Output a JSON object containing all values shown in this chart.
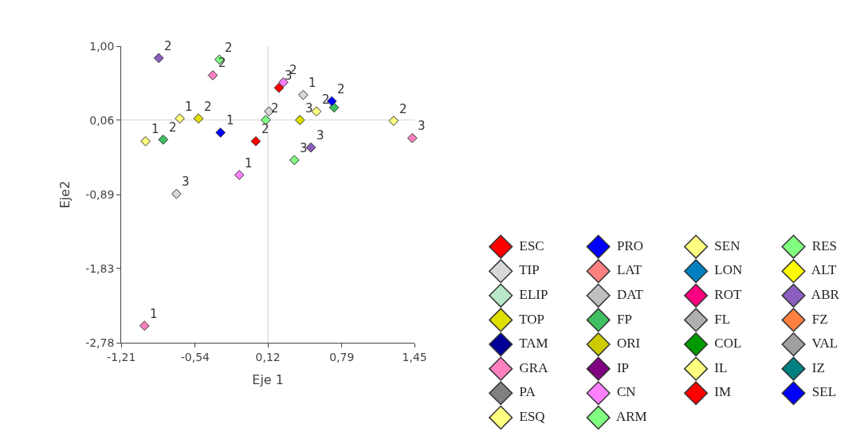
{
  "chart_data": {
    "type": "scatter",
    "xlabel": "Eje 1",
    "ylabel": "Eje2",
    "marker": "diamond",
    "grid": false,
    "legend": "bottom right",
    "xlim": [
      -1.21,
      1.45
    ],
    "ylim": [
      -2.78,
      1.0
    ],
    "xticks": [
      {
        "value": -1.21,
        "label": "-1,21"
      },
      {
        "value": -0.54,
        "label": "-0,54"
      },
      {
        "value": 0.12,
        "label": "0,12"
      },
      {
        "value": 0.79,
        "label": "0,79"
      },
      {
        "value": 1.45,
        "label": "1,45"
      }
    ],
    "yticks": [
      {
        "value": -2.78,
        "label": "-2,78"
      },
      {
        "value": -1.83,
        "label": "-1,83"
      },
      {
        "value": -0.89,
        "label": "-0,89"
      },
      {
        "value": 0.06,
        "label": "0,06"
      },
      {
        "value": 1.0,
        "label": "1,00"
      }
    ],
    "ref_lines": [
      {
        "axis": "x",
        "value": 0.12,
        "color": "#e0e0e0"
      },
      {
        "axis": "y",
        "value": 0.06,
        "color": "#e0e0e0"
      }
    ],
    "series": [
      {
        "name": "ESC",
        "color": "#ff0000",
        "x": [
          0.01,
          0.22
        ],
        "values": [
          -0.21,
          0.47
        ]
      },
      {
        "name": "PRO",
        "color": "#0000ff",
        "x": [
          -0.31
        ],
        "values": [
          -0.1
        ]
      },
      {
        "name": "SEN",
        "color": "#ffff80",
        "x": [
          -0.68,
          -0.99,
          0.56,
          1.26
        ],
        "values": [
          0.08,
          -0.21,
          0.17,
          0.05
        ]
      },
      {
        "name": "RES",
        "color": "#80ff80",
        "x": [
          -0.32,
          0.1,
          0.36
        ],
        "values": [
          0.83,
          0.06,
          -0.45
        ]
      },
      {
        "name": "TIP",
        "color": "#d8d8d8",
        "x": [
          -0.71,
          0.44,
          0.13
        ],
        "values": [
          -0.88,
          0.38,
          0.17
        ]
      },
      {
        "name": "LAT",
        "color": "#ff8080"
      },
      {
        "name": "LON",
        "color": "#0080c0"
      },
      {
        "name": "ALT",
        "color": "#ffff00"
      },
      {
        "name": "ELIP",
        "color": "#b8e8c8"
      },
      {
        "name": "DAT",
        "color": "#c0c0c0"
      },
      {
        "name": "ROT",
        "color": "#ff0080"
      },
      {
        "name": "ABR",
        "color": "#8b5fbf",
        "x": [
          -0.87,
          0.51
        ],
        "values": [
          0.85,
          -0.29
        ]
      },
      {
        "name": "TOP",
        "color": "#e0e000",
        "x": [
          -0.51,
          0.41
        ],
        "values": [
          0.08,
          0.06
        ]
      },
      {
        "name": "FP",
        "color": "#40c060",
        "x": [
          -0.83,
          0.72
        ],
        "values": [
          -0.19,
          0.22
        ]
      },
      {
        "name": "FL",
        "color": "#b0b0b0"
      },
      {
        "name": "FZ",
        "color": "#ff8040"
      },
      {
        "name": "TAM",
        "color": "#000099"
      },
      {
        "name": "ORI",
        "color": "#cccc00"
      },
      {
        "name": "COL",
        "color": "#009900"
      },
      {
        "name": "VAL",
        "color": "#a0a0a0"
      },
      {
        "name": "GRA",
        "color": "#ff80c0",
        "x": [
          -0.38,
          1.43,
          -1.0
        ],
        "values": [
          0.63,
          -0.17,
          -2.56
        ]
      },
      {
        "name": "IP",
        "color": "#800080"
      },
      {
        "name": "IL",
        "color": "#ffff80"
      },
      {
        "name": "IZ",
        "color": "#008080"
      },
      {
        "name": "PA",
        "color": "#808080"
      },
      {
        "name": "CN",
        "color": "#ff80ff",
        "x": [
          -0.14,
          0.26
        ],
        "values": [
          -0.64,
          0.54
        ]
      },
      {
        "name": "IM",
        "color": "#ff0000"
      },
      {
        "name": "SEL",
        "color": "#0000ff",
        "x": [
          0.7
        ],
        "values": [
          0.3
        ]
      },
      {
        "name": "ESQ",
        "color": "#ffff80"
      },
      {
        "name": "ARM",
        "color": "#80ff80"
      }
    ],
    "annotations": [
      {
        "text": "2",
        "x": 0.01,
        "y": -0.21
      },
      {
        "text": "3",
        "x": 0.22,
        "y": 0.47
      },
      {
        "text": "1",
        "x": -0.31,
        "y": -0.1
      },
      {
        "text": "1",
        "x": -0.68,
        "y": 0.08
      },
      {
        "text": "1",
        "x": -0.99,
        "y": -0.21
      },
      {
        "text": "2",
        "x": 0.56,
        "y": 0.17
      },
      {
        "text": "2",
        "x": 1.26,
        "y": 0.05
      },
      {
        "text": "2",
        "x": -0.32,
        "y": 0.83
      },
      {
        "text": "2",
        "x": 0.1,
        "y": 0.06
      },
      {
        "text": "3",
        "x": 0.36,
        "y": -0.45
      },
      {
        "text": "3",
        "x": -0.71,
        "y": -0.88
      },
      {
        "text": "1",
        "x": 0.44,
        "y": 0.38
      },
      {
        "text": "2",
        "x": -0.87,
        "y": 0.85
      },
      {
        "text": "3",
        "x": 0.51,
        "y": -0.29
      },
      {
        "text": "2",
        "x": -0.51,
        "y": 0.08
      },
      {
        "text": "3",
        "x": 0.41,
        "y": 0.06
      },
      {
        "text": "2",
        "x": -0.83,
        "y": -0.19
      },
      {
        "text": "2",
        "x": -0.38,
        "y": 0.63
      },
      {
        "text": "3",
        "x": 1.43,
        "y": -0.17
      },
      {
        "text": "1",
        "x": -1.0,
        "y": -2.56
      },
      {
        "text": "1",
        "x": -0.14,
        "y": -0.64
      },
      {
        "text": "2",
        "x": 0.26,
        "y": 0.54
      },
      {
        "text": "2",
        "x": 0.7,
        "y": 0.3
      }
    ]
  }
}
